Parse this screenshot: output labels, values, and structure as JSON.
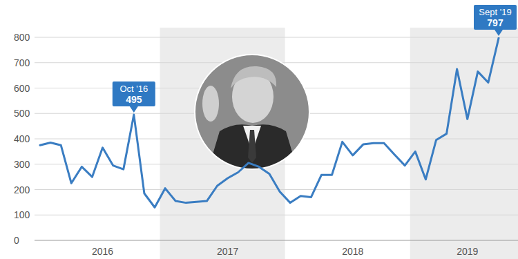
{
  "chart_data": {
    "type": "line",
    "categories": [
      null,
      null,
      null,
      null,
      null,
      null,
      "2016",
      null,
      null,
      null,
      null,
      null,
      null,
      null,
      null,
      null,
      null,
      null,
      "2017",
      null,
      null,
      null,
      null,
      null,
      null,
      null,
      null,
      null,
      null,
      null,
      "2018",
      null,
      null,
      null,
      null,
      null,
      null,
      null,
      null,
      null,
      null,
      "2019",
      null,
      null,
      null
    ],
    "values": [
      375,
      385,
      375,
      225,
      290,
      250,
      365,
      295,
      280,
      495,
      185,
      130,
      205,
      155,
      148,
      152,
      155,
      215,
      245,
      268,
      305,
      290,
      262,
      192,
      148,
      175,
      170,
      258,
      258,
      388,
      335,
      378,
      383,
      383,
      338,
      295,
      350,
      240,
      395,
      420,
      675,
      478,
      665,
      622,
      797
    ],
    "color": "#3a7dc2",
    "ylim": [
      0,
      800
    ],
    "yticks": [
      0,
      100,
      200,
      300,
      400,
      500,
      600,
      700,
      800
    ],
    "grid": true,
    "annotations": [
      {
        "label": "Oct '16",
        "value": 495
      },
      {
        "label": "Sept '19",
        "value": 797
      }
    ]
  }
}
